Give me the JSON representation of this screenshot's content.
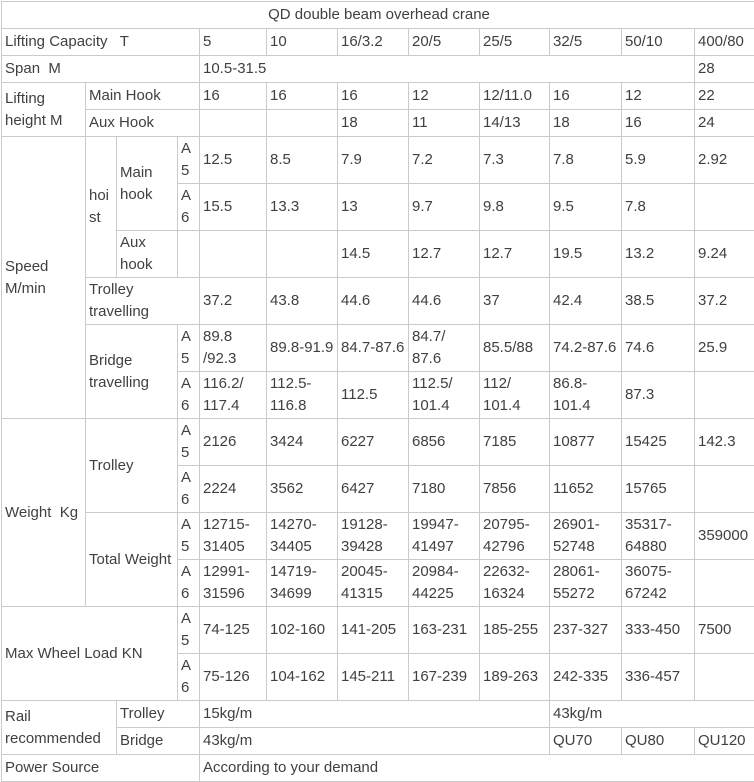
{
  "table": {
    "title": "QD double beam overhead crane",
    "capacity_columns": [
      "5",
      "10",
      "16/3.2",
      "20/5",
      "25/5",
      "32/5",
      "50/10",
      "400/80"
    ],
    "rows": [
      {
        "cells": [
          {
            "t": "QD double beam overhead crane",
            "cs": 12,
            "center": true,
            "n": "table-title"
          }
        ]
      },
      {
        "cells": [
          {
            "t": "Lifting Capacity   T",
            "cs": 4,
            "n": "label-lifting-capacity"
          },
          {
            "t": "5"
          },
          {
            "t": "10"
          },
          {
            "t": "16/3.2"
          },
          {
            "t": "20/5"
          },
          {
            "t": "25/5"
          },
          {
            "t": "32/5"
          },
          {
            "t": "50/10"
          },
          {
            "t": "400/80"
          }
        ]
      },
      {
        "cells": [
          {
            "t": "Span  M",
            "cs": 4,
            "n": "label-span"
          },
          {
            "t": "10.5-31.5",
            "cs": 7
          },
          {
            "t": "28"
          }
        ]
      },
      {
        "cells": [
          {
            "t": "Lifting height M",
            "rs": 2,
            "n": "label-lifting-height"
          },
          {
            "t": "Main Hook",
            "cs": 3,
            "n": "label-main-hook"
          },
          {
            "t": "16"
          },
          {
            "t": "16"
          },
          {
            "t": "16"
          },
          {
            "t": "12"
          },
          {
            "t": "12/11.0"
          },
          {
            "t": "16"
          },
          {
            "t": "12"
          },
          {
            "t": "22"
          }
        ]
      },
      {
        "cells": [
          {
            "t": "Aux Hook",
            "cs": 3,
            "n": "label-aux-hook"
          },
          {
            "t": ""
          },
          {
            "t": ""
          },
          {
            "t": "18"
          },
          {
            "t": "11"
          },
          {
            "t": "14/13"
          },
          {
            "t": "18"
          },
          {
            "t": "16"
          },
          {
            "t": "24"
          }
        ]
      },
      {
        "cells": [
          {
            "t": "Speed M/min",
            "rs": 6,
            "n": "label-speed"
          },
          {
            "t": "hoist",
            "rs": 3,
            "n": "label-hoist"
          },
          {
            "t": "Main hook",
            "rs": 2,
            "n": "label-speed-main-hook"
          },
          {
            "t": "A5"
          },
          {
            "t": "12.5"
          },
          {
            "t": "8.5"
          },
          {
            "t": "7.9"
          },
          {
            "t": "7.2"
          },
          {
            "t": "7.3"
          },
          {
            "t": "7.8"
          },
          {
            "t": "5.9"
          },
          {
            "t": "2.92"
          }
        ]
      },
      {
        "cells": [
          {
            "t": "A6"
          },
          {
            "t": "15.5"
          },
          {
            "t": "13.3"
          },
          {
            "t": "13"
          },
          {
            "t": "9.7"
          },
          {
            "t": "9.8"
          },
          {
            "t": "9.5"
          },
          {
            "t": "7.8"
          },
          {
            "t": ""
          }
        ]
      },
      {
        "cells": [
          {
            "t": "Aux hook",
            "n": "label-speed-aux-hook"
          },
          {
            "t": ""
          },
          {
            "t": ""
          },
          {
            "t": ""
          },
          {
            "t": "14.5"
          },
          {
            "t": "12.7"
          },
          {
            "t": "12.7"
          },
          {
            "t": "19.5"
          },
          {
            "t": "13.2"
          },
          {
            "t": "9.24"
          }
        ]
      },
      {
        "cells": [
          {
            "t": "Trolley travelling",
            "cs": 3,
            "n": "label-trolley-travelling"
          },
          {
            "t": "37.2"
          },
          {
            "t": "43.8"
          },
          {
            "t": "44.6"
          },
          {
            "t": "44.6"
          },
          {
            "t": "37"
          },
          {
            "t": "42.4"
          },
          {
            "t": "38.5"
          },
          {
            "t": "37.2"
          }
        ]
      },
      {
        "cells": [
          {
            "t": "Bridge travelling",
            "cs": 2,
            "rs": 2,
            "n": "label-bridge-travelling"
          },
          {
            "t": "A5"
          },
          {
            "t": "89.8\n/92.3"
          },
          {
            "t": "89.8-91.9"
          },
          {
            "t": "84.7-87.6"
          },
          {
            "t": "84.7/\n87.6"
          },
          {
            "t": "85.5/88"
          },
          {
            "t": "74.2-87.6"
          },
          {
            "t": "74.6"
          },
          {
            "t": "25.9"
          }
        ]
      },
      {
        "cells": [
          {
            "t": "A6"
          },
          {
            "t": "116.2/\n117.4"
          },
          {
            "t": "112.5-\n116.8"
          },
          {
            "t": "112.5"
          },
          {
            "t": "112.5/\n101.4"
          },
          {
            "t": "112/\n101.4"
          },
          {
            "t": "86.8-\n101.4"
          },
          {
            "t": "87.3"
          },
          {
            "t": ""
          }
        ]
      },
      {
        "cells": [
          {
            "t": "Weight  Kg",
            "rs": 4,
            "n": "label-weight"
          },
          {
            "t": "Trolley",
            "cs": 2,
            "rs": 2,
            "n": "label-trolley-weight"
          },
          {
            "t": "A5"
          },
          {
            "t": "2126"
          },
          {
            "t": "3424"
          },
          {
            "t": "6227"
          },
          {
            "t": "6856"
          },
          {
            "t": "7185"
          },
          {
            "t": "10877"
          },
          {
            "t": "15425"
          },
          {
            "t": "142.3"
          }
        ]
      },
      {
        "cells": [
          {
            "t": "A6"
          },
          {
            "t": "2224"
          },
          {
            "t": "3562"
          },
          {
            "t": "6427"
          },
          {
            "t": "7180"
          },
          {
            "t": "7856"
          },
          {
            "t": "11652"
          },
          {
            "t": "15765"
          },
          {
            "t": ""
          }
        ]
      },
      {
        "cells": [
          {
            "t": "Total Weight",
            "cs": 2,
            "rs": 2,
            "n": "label-total-weight"
          },
          {
            "t": "A5"
          },
          {
            "t": "12715-\n31405"
          },
          {
            "t": "14270-\n34405"
          },
          {
            "t": "19128-\n39428"
          },
          {
            "t": "19947-\n41497"
          },
          {
            "t": "20795-\n42796"
          },
          {
            "t": "26901-\n52748"
          },
          {
            "t": "35317-\n64880"
          },
          {
            "t": "359000"
          }
        ]
      },
      {
        "cells": [
          {
            "t": "A6"
          },
          {
            "t": "12991-\n31596"
          },
          {
            "t": "14719-\n34699"
          },
          {
            "t": "20045-\n41315"
          },
          {
            "t": "20984-\n44225"
          },
          {
            "t": "22632-\n16324"
          },
          {
            "t": "28061-\n55272"
          },
          {
            "t": "36075-\n67242"
          },
          {
            "t": ""
          }
        ]
      },
      {
        "cells": [
          {
            "t": "Max Wheel Load KN",
            "cs": 3,
            "rs": 2,
            "n": "label-max-wheel-load"
          },
          {
            "t": "A5"
          },
          {
            "t": "74-125"
          },
          {
            "t": "102-160"
          },
          {
            "t": "141-205"
          },
          {
            "t": "163-231"
          },
          {
            "t": "185-255"
          },
          {
            "t": "237-327"
          },
          {
            "t": "333-450"
          },
          {
            "t": "7500"
          }
        ]
      },
      {
        "cells": [
          {
            "t": "A6"
          },
          {
            "t": "75-126"
          },
          {
            "t": "104-162"
          },
          {
            "t": "145-211"
          },
          {
            "t": "167-239"
          },
          {
            "t": "189-263"
          },
          {
            "t": "242-335"
          },
          {
            "t": "336-457"
          },
          {
            "t": ""
          }
        ]
      },
      {
        "cells": [
          {
            "t": "Rail recommended",
            "cs": 2,
            "rs": 2,
            "n": "label-rail-recommended"
          },
          {
            "t": "Trolley",
            "cs": 2,
            "n": "label-rail-trolley"
          },
          {
            "t": "15kg/m",
            "cs": 5
          },
          {
            "t": "43kg/m",
            "cs": 3
          }
        ]
      },
      {
        "cells": [
          {
            "t": "Bridge",
            "cs": 2,
            "n": "label-rail-bridge"
          },
          {
            "t": "43kg/m",
            "cs": 5
          },
          {
            "t": "QU70"
          },
          {
            "t": "QU80"
          },
          {
            "t": "QU120"
          }
        ]
      },
      {
        "cells": [
          {
            "t": "Power Source",
            "cs": 4,
            "n": "label-power-source"
          },
          {
            "t": "According to your demand",
            "cs": 8
          }
        ]
      }
    ]
  }
}
